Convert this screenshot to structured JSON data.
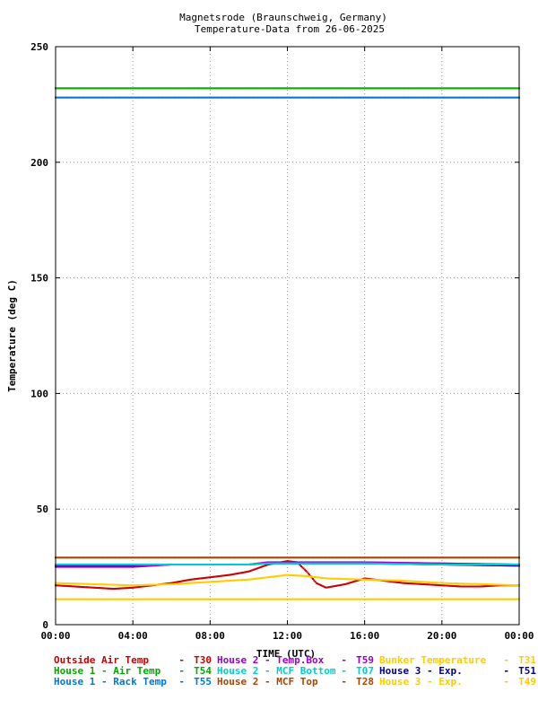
{
  "chart_data": {
    "type": "scatter",
    "title": "Magnetsrode (Braunschweig, Germany)",
    "subtitle": "Temperature-Data from 26-06-2025",
    "xlabel": "TIME (UTC)",
    "ylabel": "Temperature (deg C)",
    "xlim": [
      0,
      24
    ],
    "ylim": [
      0,
      250
    ],
    "x_ticks": [
      "00:00",
      "04:00",
      "08:00",
      "12:00",
      "16:00",
      "20:00",
      "00:00"
    ],
    "y_ticks": [
      "0",
      "50",
      "100",
      "150",
      "200",
      "250"
    ],
    "grid": true,
    "legend_position": "bottom",
    "series": [
      {
        "name": "Outside Air Temp",
        "code": "T30",
        "color": "#cc0000",
        "x": [
          0,
          1,
          2,
          3,
          4,
          5,
          6,
          7,
          8,
          9,
          10,
          11,
          12,
          12.5,
          13,
          13.5,
          14,
          15,
          16,
          17,
          18,
          19,
          20,
          21,
          22,
          23,
          24
        ],
        "values": [
          17,
          16.5,
          16,
          15.5,
          16,
          17,
          18,
          19.5,
          20.5,
          21.5,
          23,
          26,
          27.5,
          27,
          23,
          18,
          16,
          17.5,
          20,
          19,
          18,
          17.5,
          17,
          16.5,
          16.5,
          17,
          17
        ]
      },
      {
        "name": "House 2 - Temp.Box",
        "code": "T59",
        "color": "#9900cc",
        "x": [
          0,
          4,
          6,
          8,
          10,
          11,
          12,
          16,
          20,
          24
        ],
        "values": [
          25,
          25,
          26,
          26,
          26,
          27,
          27,
          27,
          26.5,
          26
        ]
      },
      {
        "name": "Bunker Temperature",
        "code": "T31",
        "color": "#ffcc00",
        "x": [
          0,
          6,
          12,
          18,
          24
        ],
        "values": [
          11,
          11,
          11,
          11,
          11
        ]
      },
      {
        "name": "House 1 - Air Temp",
        "code": "T54",
        "color": "#00aa00",
        "x": [
          0,
          6,
          12,
          18,
          24
        ],
        "values": [
          232,
          232,
          232,
          232,
          232
        ]
      },
      {
        "name": "House 2 - MCF Bottom",
        "code": "T07",
        "color": "#00cccc",
        "x": [
          0,
          4,
          6,
          8,
          10,
          11,
          12,
          16,
          20,
          24
        ],
        "values": [
          26,
          26,
          26,
          26,
          26,
          26.5,
          26.5,
          26.5,
          26,
          26
        ]
      },
      {
        "name": "House 3 - Exp.",
        "code": "T51",
        "color": "#000099",
        "x": [
          0,
          4,
          6,
          8,
          10,
          11,
          12,
          16,
          20,
          24
        ],
        "values": [
          25.5,
          25.5,
          26,
          26,
          26,
          26.5,
          26.5,
          26.5,
          26,
          25.5
        ]
      },
      {
        "name": "House 1 - Rack Temp",
        "code": "T55",
        "color": "#0077dd",
        "x": [
          0,
          6,
          12,
          18,
          24
        ],
        "values": [
          228,
          228,
          228,
          228,
          228
        ]
      },
      {
        "name": "House 2 - MCF Top",
        "code": "T28",
        "color": "#aa4400",
        "x": [
          0,
          6,
          12,
          18,
          24
        ],
        "values": [
          29,
          29,
          29,
          29,
          29
        ]
      },
      {
        "name": "House 3 - Exp.",
        "code": "T49",
        "color": "#ffcc00",
        "x": [
          0,
          2,
          4,
          6,
          8,
          10,
          11,
          12,
          13,
          14,
          16,
          18,
          20,
          22,
          24
        ],
        "values": [
          18,
          17.5,
          17,
          17.5,
          18.5,
          19.5,
          20.5,
          21.5,
          21,
          20,
          19.5,
          19,
          18,
          17.5,
          17
        ]
      }
    ]
  }
}
